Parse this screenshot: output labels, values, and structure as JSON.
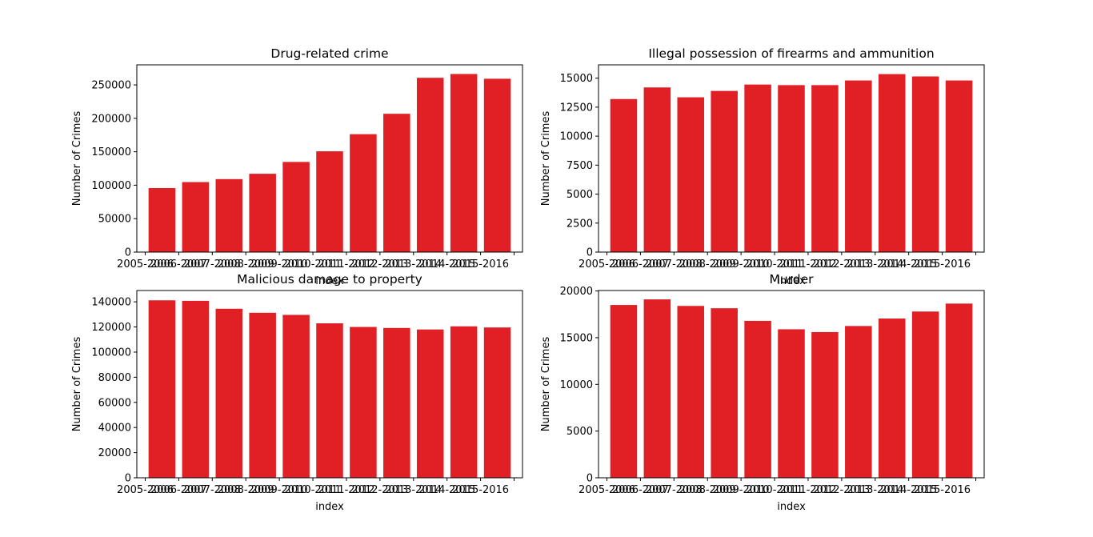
{
  "chart_data": [
    {
      "type": "bar",
      "title": "Drug-related crime",
      "xlabel": "index",
      "ylabel": "Number of Crimes",
      "categories": [
        "2005-2006",
        "2006-2007",
        "2007-2008",
        "2008-2009",
        "2009-2010",
        "2010-2011",
        "2011-2012",
        "2012-2013",
        "2013-2014",
        "2014-2015",
        "2015-2016"
      ],
      "values": [
        95700,
        104700,
        109100,
        117100,
        134800,
        150700,
        176300,
        206800,
        260600,
        266300,
        259200
      ],
      "ylim": [
        0,
        280000
      ],
      "yticks": [
        0,
        50000,
        100000,
        150000,
        200000,
        250000
      ],
      "color": "#e02024"
    },
    {
      "type": "bar",
      "title": "Illegal possession of firearms and ammunition",
      "xlabel": "index",
      "ylabel": "Number of Crimes",
      "categories": [
        "2005-2006",
        "2006-2007",
        "2007-2008",
        "2008-2009",
        "2009-2010",
        "2010-2011",
        "2011-2012",
        "2012-2013",
        "2013-2014",
        "2014-2015",
        "2015-2016"
      ],
      "values": [
        13200,
        14200,
        13350,
        13900,
        14450,
        14400,
        14400,
        14800,
        15350,
        15150,
        14800
      ],
      "ylim": [
        0,
        16150
      ],
      "yticks": [
        0,
        2500,
        5000,
        7500,
        10000,
        12500,
        15000
      ],
      "color": "#e02024"
    },
    {
      "type": "bar",
      "title": "Malicious damage to property",
      "xlabel": "index",
      "ylabel": "Number of Crimes",
      "categories": [
        "2005-2006",
        "2006-2007",
        "2007-2008",
        "2008-2009",
        "2009-2010",
        "2010-2011",
        "2011-2012",
        "2012-2013",
        "2013-2014",
        "2014-2015",
        "2015-2016"
      ],
      "values": [
        141200,
        140800,
        134500,
        131300,
        129600,
        122900,
        120000,
        119200,
        118000,
        120500,
        119600
      ],
      "ylim": [
        0,
        149000
      ],
      "yticks": [
        0,
        20000,
        40000,
        60000,
        80000,
        100000,
        120000,
        140000
      ],
      "color": "#e02024"
    },
    {
      "type": "bar",
      "title": "Murder",
      "xlabel": "index",
      "ylabel": "Number of Crimes",
      "categories": [
        "2005-2006",
        "2006-2007",
        "2007-2008",
        "2008-2009",
        "2009-2010",
        "2010-2011",
        "2011-2012",
        "2012-2013",
        "2013-2014",
        "2014-2015",
        "2015-2016"
      ],
      "values": [
        18500,
        19100,
        18400,
        18150,
        16800,
        15900,
        15600,
        16250,
        17050,
        17800,
        18650
      ],
      "ylim": [
        0,
        20050
      ],
      "yticks": [
        0,
        5000,
        10000,
        15000,
        20000
      ],
      "color": "#e02024"
    }
  ]
}
